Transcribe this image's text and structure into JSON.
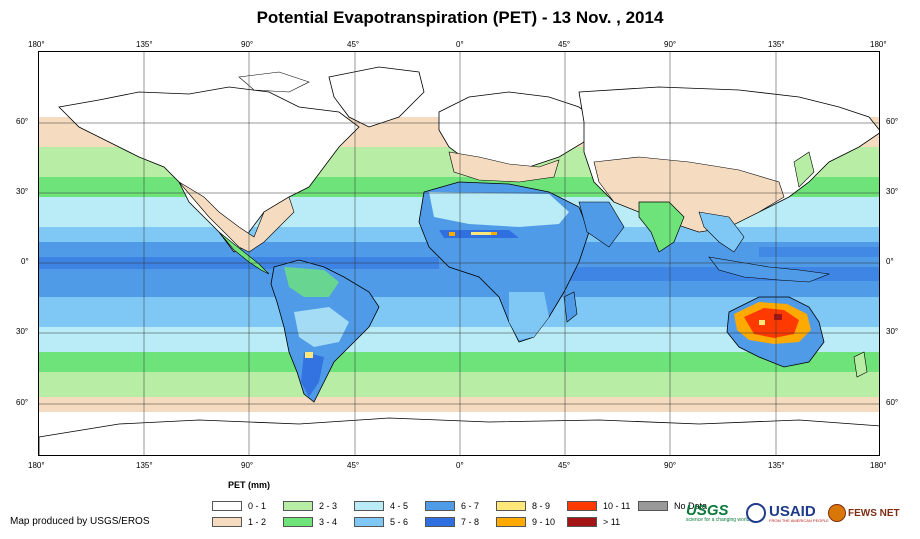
{
  "title": "Potential Evapotranspiration (PET) - 13 Nov. , 2014",
  "axes": {
    "lon_labels": [
      "180°",
      "135°",
      "90°",
      "45°",
      "0°",
      "45°",
      "90°",
      "135°",
      "180°"
    ],
    "lat_labels": [
      "60°",
      "30°",
      "0°",
      "30°",
      "60°"
    ]
  },
  "legend": {
    "title": "PET (mm)",
    "items": [
      {
        "label": "0 - 1",
        "color": "#ffffff"
      },
      {
        "label": "1 - 2",
        "color": "#f5dcc0"
      },
      {
        "label": "2 - 3",
        "color": "#b7eda5"
      },
      {
        "label": "3 - 4",
        "color": "#6ee37a"
      },
      {
        "label": "4 - 5",
        "color": "#b9ecf7"
      },
      {
        "label": "5 - 6",
        "color": "#7fc7f5"
      },
      {
        "label": "6 - 7",
        "color": "#4f9be8"
      },
      {
        "label": "7 - 8",
        "color": "#2f6fe0"
      },
      {
        "label": "8 - 9",
        "color": "#ffe77a"
      },
      {
        "label": "9 - 10",
        "color": "#ffaa00"
      },
      {
        "label": "10 - 11",
        "color": "#ff3a00"
      },
      {
        "label": "> 11",
        "color": "#a31515"
      },
      {
        "label": "No Data",
        "color": "#999999"
      }
    ]
  },
  "credit": "Map produced by USGS/EROS",
  "logos": {
    "usgs": "USGS",
    "usgs_tag": "science for a changing world",
    "usaid": "USAID",
    "usaid_tag": "FROM THE AMERICAN PEOPLE",
    "fews": "FEWS NET"
  }
}
